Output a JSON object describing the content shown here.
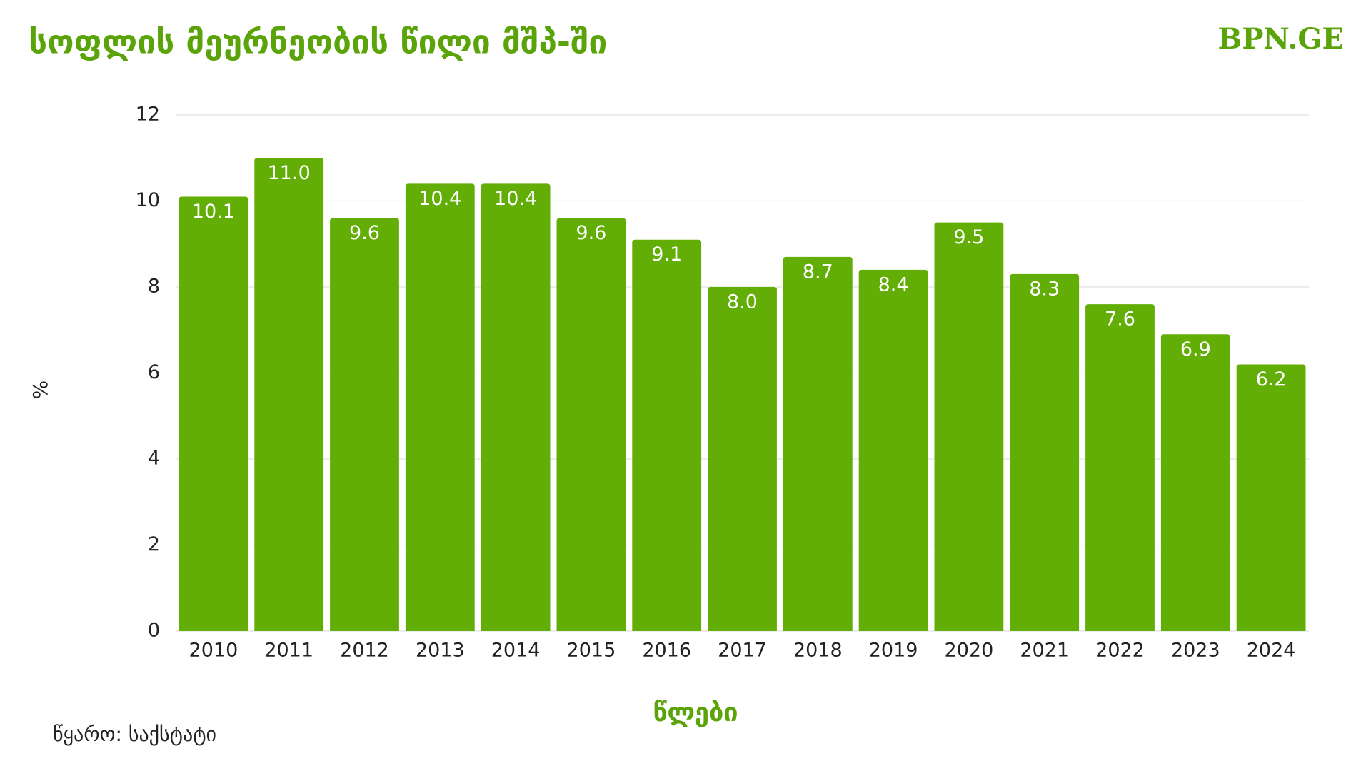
{
  "chart_data": {
    "type": "bar",
    "title": "სოფლის მეურნეობის წილი მშპ-ში",
    "brand": "BPN.GE",
    "y_label": "%",
    "x_label": "წლები",
    "source": "წყარო: საქსტატი",
    "categories": [
      "2010",
      "2011",
      "2012",
      "2013",
      "2014",
      "2015",
      "2016",
      "2017",
      "2018",
      "2019",
      "2020",
      "2021",
      "2022",
      "2023",
      "2024"
    ],
    "values": [
      10.1,
      11,
      9.6,
      10.4,
      10.4,
      9.6,
      9.1,
      8,
      8.7,
      8.4,
      9.5,
      8.3,
      7.6,
      6.9,
      6.2
    ],
    "value_labels": [
      "10.1",
      "11.0",
      "9.6",
      "10.4",
      "10.4",
      "9.6",
      "9.1",
      "8.0",
      "8.7",
      "8.4",
      "9.5",
      "8.3",
      "7.6",
      "6.9",
      "6.2"
    ],
    "color": "#62ae06",
    "ylim": [
      0,
      12
    ],
    "yticks": [
      0,
      2,
      4,
      6,
      8,
      10,
      12
    ],
    "grid": true
  }
}
